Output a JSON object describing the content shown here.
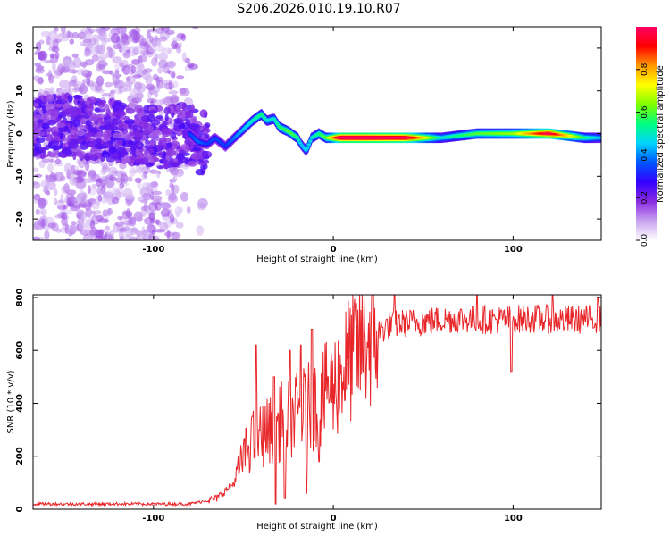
{
  "figure": {
    "title": "S206.2026.010.19.10.R07"
  },
  "chart_data": [
    {
      "type": "heatmap",
      "xlabel": "Height of straight line (km)",
      "ylabel": "Frequency (Hz)",
      "xlim": [
        -167,
        149
      ],
      "ylim": [
        -25,
        25
      ],
      "x_ticks": [
        -100,
        0,
        100
      ],
      "y_ticks": [
        -20,
        -10,
        0,
        10,
        20
      ],
      "colorbar": {
        "label": "Normalized spectral amplitude",
        "range": [
          0,
          1
        ],
        "ticks": [
          0.0,
          0.2,
          0.4,
          0.6,
          0.8
        ],
        "colormap": [
          "#ffffff",
          "#c9a3f0",
          "#8a2be2",
          "#3300ff",
          "#0055ff",
          "#00d5ff",
          "#00ff80",
          "#80ff00",
          "#ffff00",
          "#ff9900",
          "#ff0000",
          "#ff0066"
        ]
      },
      "ridge": {
        "x": [
          -167,
          -150,
          -130,
          -110,
          -95,
          -80,
          -75,
          -70,
          -66,
          -60,
          -55,
          -50,
          -45,
          -40,
          -37,
          -33,
          -30,
          -25,
          -20,
          -18,
          -15,
          -12,
          -8,
          -4,
          0,
          5,
          20,
          40,
          60,
          80,
          100,
          120,
          140,
          149
        ],
        "y": [
          1,
          2,
          1,
          0,
          -1,
          0,
          -2,
          -2.5,
          -1,
          -3,
          -1,
          1,
          3,
          4.5,
          3,
          3.5,
          1.5,
          0.5,
          -1,
          -2.5,
          -4,
          -1,
          0,
          -1,
          -1,
          -1,
          -1,
          -1,
          -1,
          0,
          0,
          0,
          -1,
          -1
        ],
        "amplitude": [
          0.25,
          0.3,
          0.3,
          0.28,
          0.25,
          0.3,
          0.35,
          0.3,
          0.32,
          0.3,
          0.35,
          0.4,
          0.45,
          0.5,
          0.45,
          0.45,
          0.5,
          0.55,
          0.5,
          0.4,
          0.42,
          0.45,
          0.5,
          0.55,
          0.75,
          1.0,
          1.0,
          0.95,
          0.45,
          0.55,
          0.6,
          0.9,
          0.5,
          0.4
        ]
      }
    },
    {
      "type": "line",
      "xlabel": "Height of straight line (km)",
      "ylabel": "SNR (10 * v/v)",
      "xlim": [
        -167,
        149
      ],
      "ylim": [
        0,
        810
      ],
      "x_ticks": [
        -100,
        0,
        100
      ],
      "y_ticks": [
        0,
        200,
        400,
        600,
        800
      ],
      "series": [
        {
          "color": "#e8262a",
          "envelope": {
            "x": [
              -167,
              -80,
              -65,
              -55,
              -50,
              -45,
              -40,
              -35,
              -30,
              -25,
              -20,
              -15,
              -10,
              -5,
              0,
              5,
              10,
              15,
              20,
              25,
              30,
              35,
              50,
              70,
              90,
              110,
              130,
              149
            ],
            "y": [
              20,
              20,
              40,
              100,
              200,
              260,
              280,
              300,
              320,
              340,
              360,
              380,
              400,
              430,
              460,
              520,
              580,
              620,
              650,
              670,
              690,
              700,
              710,
              720,
              715,
              720,
              715,
              720
            ]
          },
          "spikes": [
            {
              "x": -43,
              "y": 620
            },
            {
              "x": -45,
              "y": 350
            },
            {
              "x": -33,
              "y": 500
            },
            {
              "x": -29,
              "y": 480
            },
            {
              "x": -24,
              "y": 600
            },
            {
              "x": -18,
              "y": 620
            },
            {
              "x": -12,
              "y": 680
            },
            {
              "x": -8,
              "y": 510
            },
            {
              "x": -3,
              "y": 500
            },
            {
              "x": 34,
              "y": 810
            },
            {
              "x": 80,
              "y": 810
            },
            {
              "x": 122,
              "y": 810
            },
            {
              "x": 147,
              "y": 800
            }
          ],
          "dips": [
            {
              "x": -32,
              "y": 20
            },
            {
              "x": -27,
              "y": 40
            },
            {
              "x": -15,
              "y": 60
            },
            {
              "x": -8,
              "y": 180
            },
            {
              "x": 99,
              "y": 520
            }
          ]
        }
      ]
    }
  ]
}
